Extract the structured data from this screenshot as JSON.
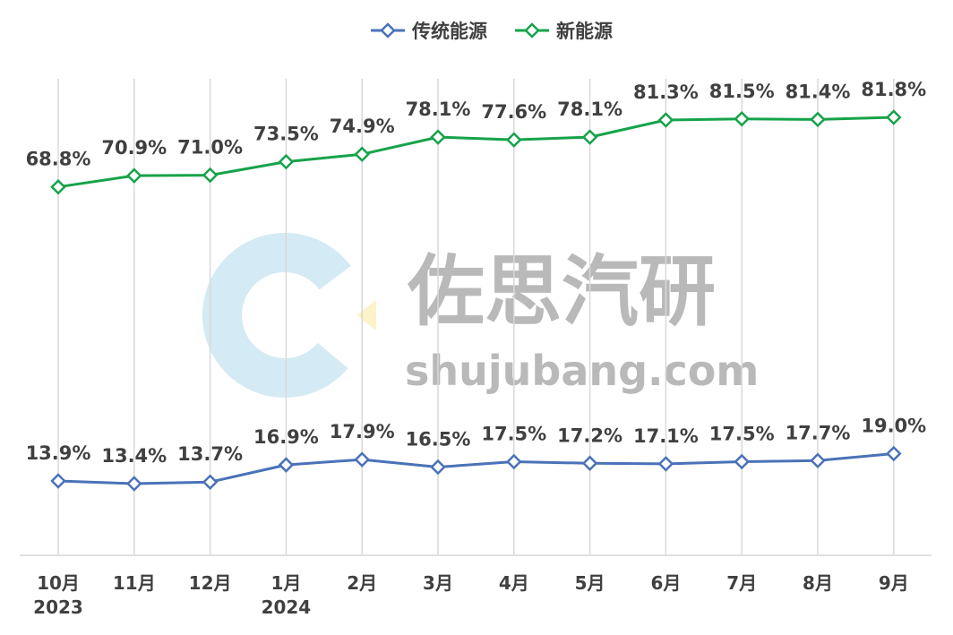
{
  "watermark": {
    "brand": "佐思汽研",
    "site": "shujubang.com"
  },
  "chart_data": {
    "type": "line",
    "categories": [
      "10月",
      "11月",
      "12月",
      "1月",
      "2月",
      "3月",
      "4月",
      "5月",
      "6月",
      "7月",
      "8月",
      "9月"
    ],
    "year_labels": [
      "2023",
      "",
      "",
      "2024",
      "",
      "",
      "",
      "",
      "",
      "",
      "",
      ""
    ],
    "unit": "%",
    "ylim": [
      0,
      100
    ],
    "grid": "vertical",
    "legend_position": "top-center",
    "series": [
      {
        "name": "传统能源",
        "color": "#4a72b8",
        "values": [
          13.9,
          13.4,
          13.7,
          16.9,
          17.9,
          16.5,
          17.5,
          17.2,
          17.1,
          17.5,
          17.7,
          19.0
        ]
      },
      {
        "name": "新能源",
        "color": "#16a34a",
        "values": [
          68.8,
          70.9,
          71.0,
          73.5,
          74.9,
          78.1,
          77.6,
          78.1,
          81.3,
          81.5,
          81.4,
          81.8
        ]
      }
    ]
  }
}
